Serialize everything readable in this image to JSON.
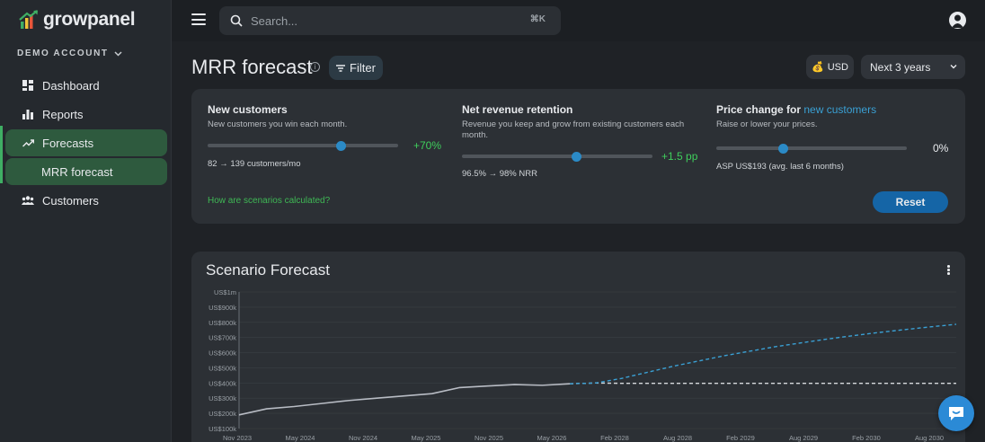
{
  "brand": {
    "name": "growpanel"
  },
  "account": {
    "label": "DEMO ACCOUNT"
  },
  "sidebar": {
    "items": [
      {
        "label": "Dashboard",
        "icon": "dashboard-icon"
      },
      {
        "label": "Reports",
        "icon": "bar-chart-icon"
      },
      {
        "label": "Forecasts",
        "icon": "trend-icon"
      },
      {
        "label": "MRR forecast",
        "icon": ""
      },
      {
        "label": "Customers",
        "icon": "users-icon"
      }
    ]
  },
  "search": {
    "placeholder": "Search...",
    "shortcut": "⌘K"
  },
  "page": {
    "title": "MRR forecast",
    "filter_label": "Filter",
    "currency_label": "USD",
    "currency_emoji": "💰",
    "period_label": "Next 3 years"
  },
  "scenario": {
    "new_customers": {
      "title": "New customers",
      "desc": "New customers you win each month.",
      "delta": "+70%",
      "note": "82 → 139 customers/mo",
      "slider_value": 0.7
    },
    "nrr": {
      "title": "Net revenue retention",
      "desc": "Revenue you keep and grow from existing customers each month.",
      "delta": "+1.5 pp",
      "note": "96.5% → 98% NRR",
      "slider_value": 0.6
    },
    "price": {
      "title": "Price change for",
      "link": "new customers",
      "desc": "Raise or lower your prices.",
      "delta": "0%",
      "note": "ASP US$193 (avg. last 6 months)",
      "slider_value": 0.35
    },
    "help_link": "How are scenarios calculated?",
    "reset_label": "Reset"
  },
  "chart_data": {
    "type": "line",
    "title": "Scenario Forecast",
    "y_ticks": [
      "US$1m",
      "US$900k",
      "US$800k",
      "US$700k",
      "US$600k",
      "US$500k",
      "US$400k",
      "US$300k",
      "US$200k",
      "US$100k"
    ],
    "ylim": [
      100000,
      1000000
    ],
    "x_ticks": [
      "Nov 2023",
      "May 2024",
      "Nov 2024",
      "May 2025",
      "Nov 2025",
      "May 2026",
      "Feb 2028",
      "Aug 2028",
      "Feb 2029",
      "Aug 2029",
      "Feb 2030",
      "Aug 2030"
    ],
    "grid": true,
    "series": [
      {
        "style": "solid",
        "color": "#b8bcc4",
        "values": [
          190000,
          230000,
          245000,
          265000,
          285000,
          300000,
          315000,
          330000,
          370000,
          380000,
          390000,
          385000,
          395000
        ]
      },
      {
        "style": "dashed-white",
        "color": "#d8dade",
        "values": [
          395000,
          400000,
          398000,
          398000,
          398000,
          398000,
          398000,
          398000,
          398000,
          398000,
          398000,
          398000,
          398000,
          398000,
          398000,
          398000
        ]
      },
      {
        "style": "dashed-blue",
        "color": "#3aa0d4",
        "values": [
          395000,
          400000,
          430000,
          470000,
          510000,
          545000,
          580000,
          610000,
          640000,
          665000,
          690000,
          712000,
          733000,
          752000,
          770000,
          787000
        ]
      }
    ]
  }
}
